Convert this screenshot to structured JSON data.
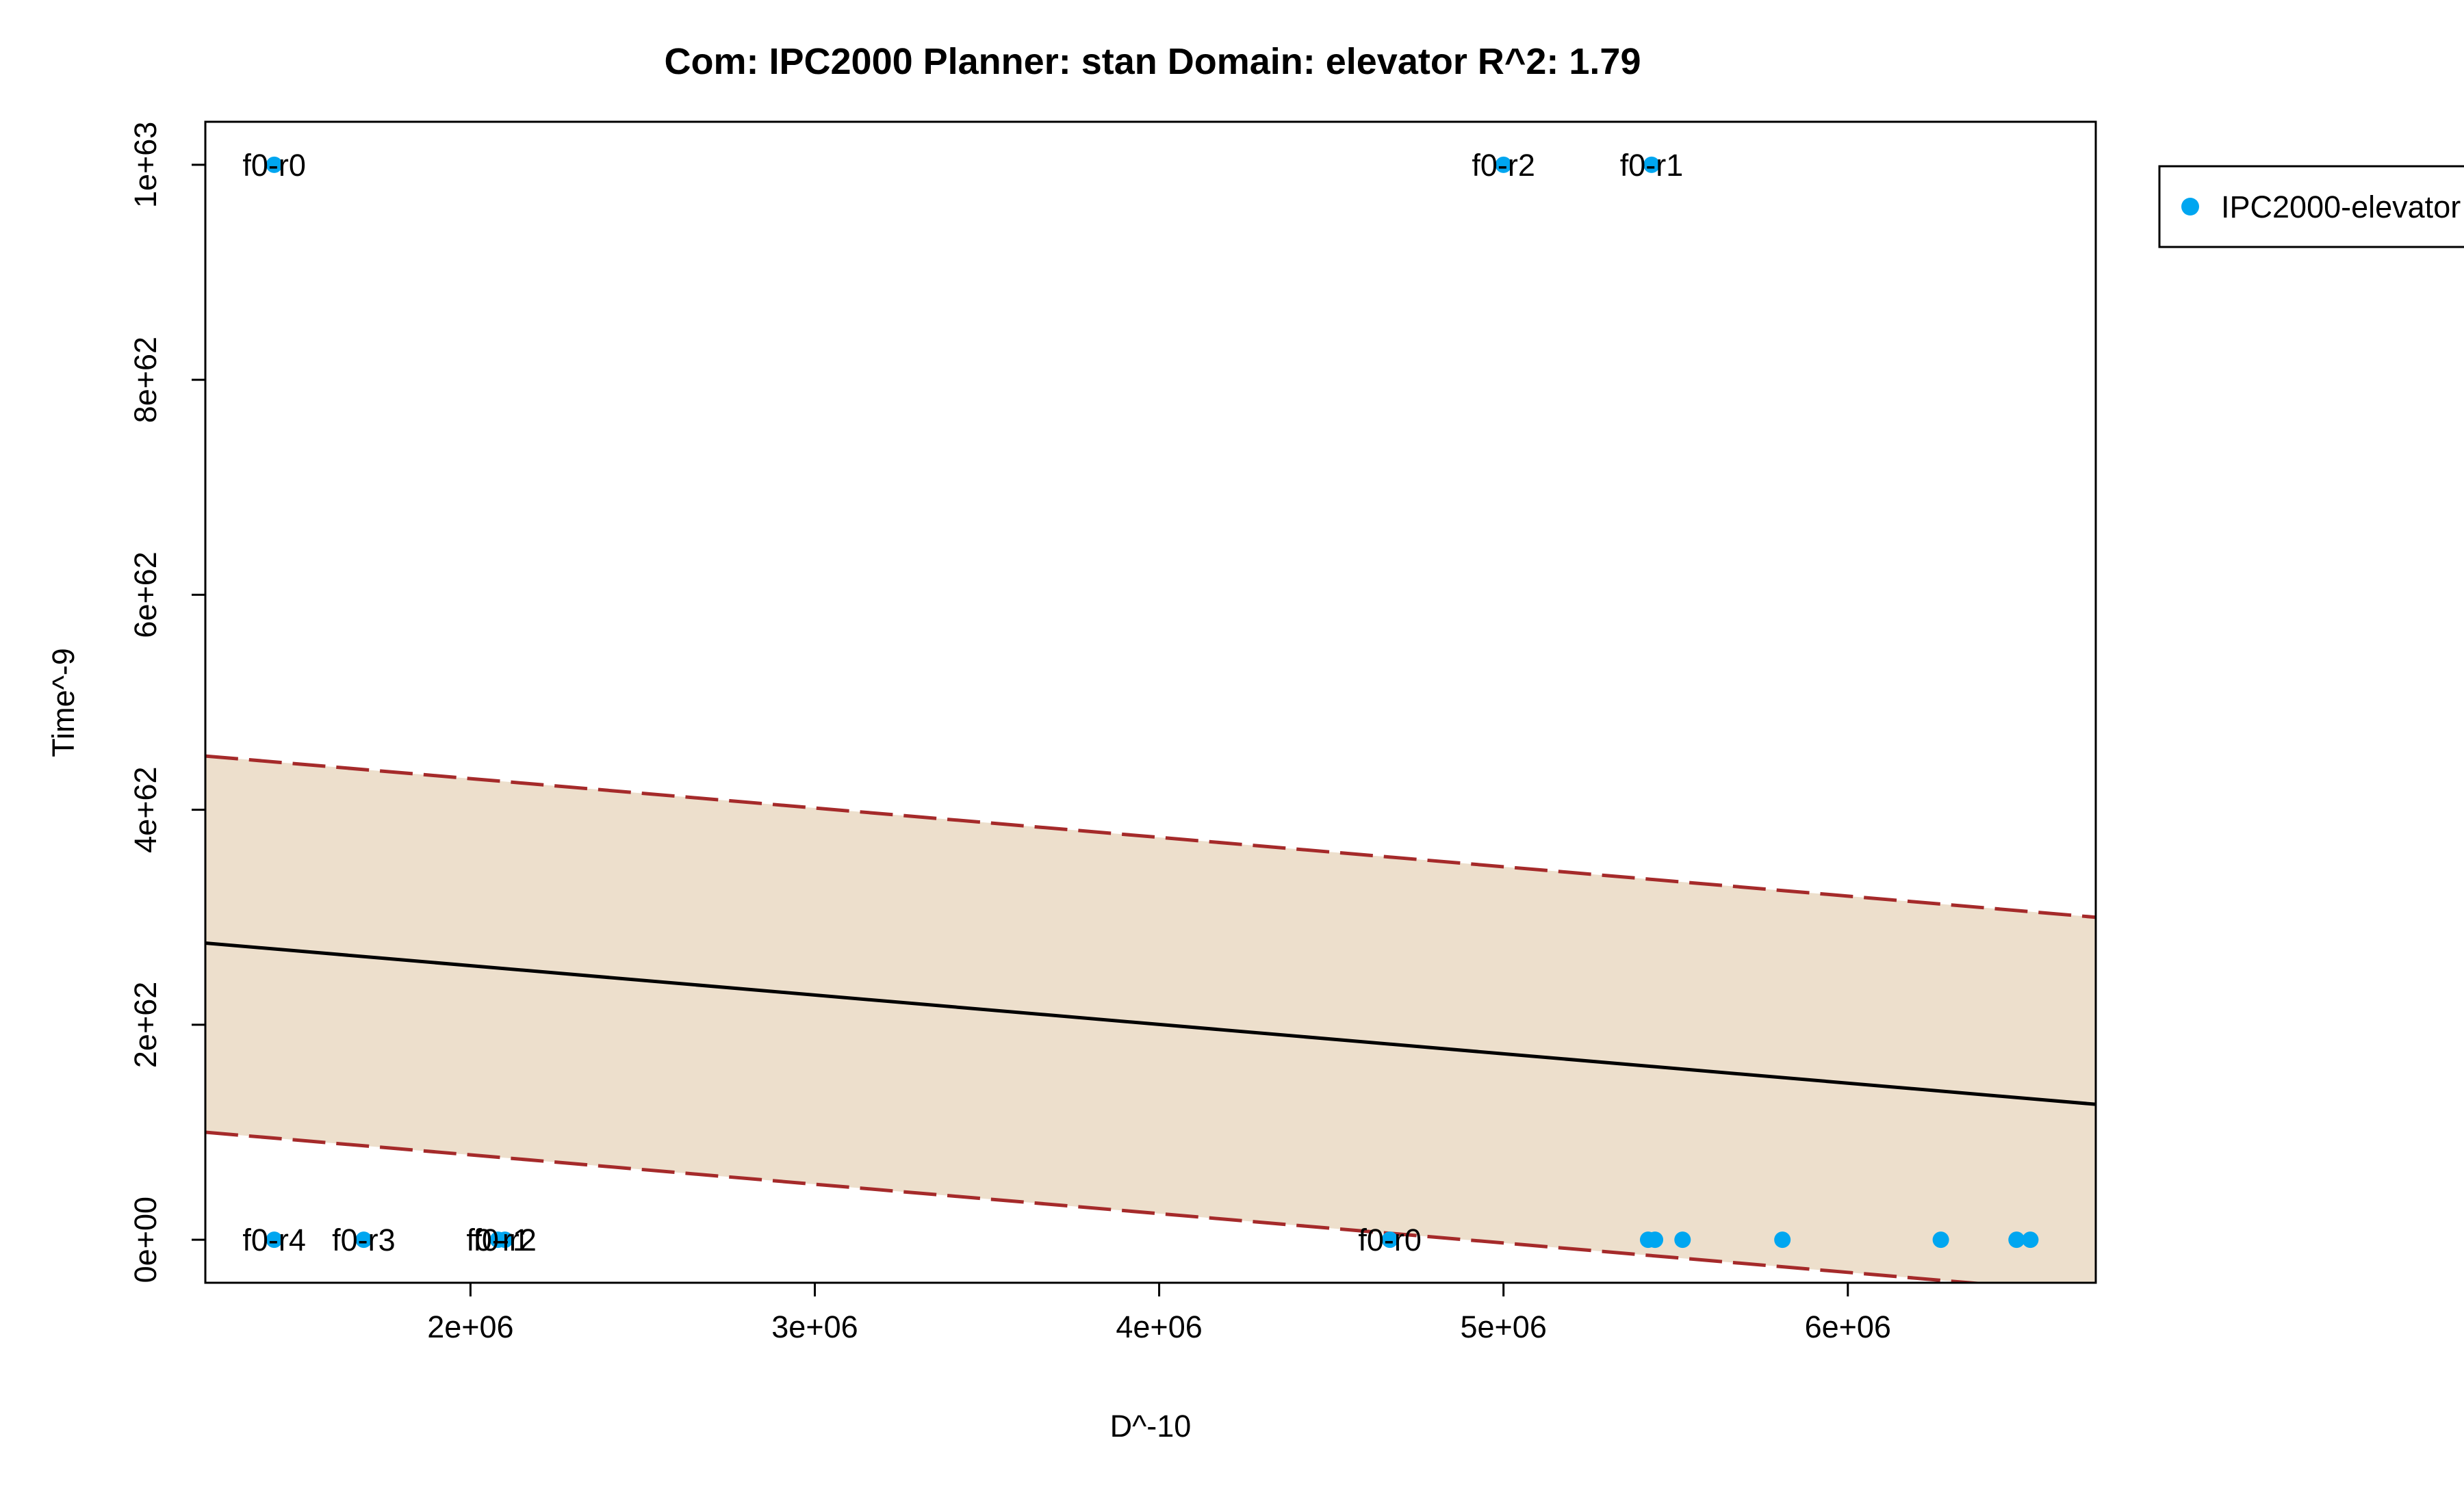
{
  "chart_data": {
    "type": "scatter",
    "title": "Com: IPC2000 Planner: stan Domain: elevator R^2: 1.79",
    "xlabel": "D^-10",
    "ylabel": "Time^-9",
    "xlim": [
      1230000,
      6720000
    ],
    "ylim": [
      -4e+61,
      1.04e+63
    ],
    "x_ticks": [
      2000000,
      3000000,
      4000000,
      5000000,
      6000000
    ],
    "x_tick_labels": [
      "2e+06",
      "3e+06",
      "4e+06",
      "5e+06",
      "6e+06"
    ],
    "y_ticks": [
      0,
      2e+62,
      4e+62,
      6e+62,
      8e+62,
      1e+63
    ],
    "y_tick_labels": [
      "0e+00",
      "2e+62",
      "4e+62",
      "6e+62",
      "8e+62",
      "1e+63"
    ],
    "grid": false,
    "legend_position": "top-right",
    "legend": [
      "IPC2000-elevator"
    ],
    "colors": {
      "points": "#00a6f0",
      "fit_line": "#000000",
      "bounds": "#a52a2a",
      "band": "#eddfcc"
    },
    "series": [
      {
        "name": "IPC2000-elevator",
        "points": [
          {
            "x": 1430000,
            "y": 1e+63,
            "label": "f0-r0"
          },
          {
            "x": 5000000,
            "y": 1e+63,
            "label": "f0-r2"
          },
          {
            "x": 5430000,
            "y": 1e+63,
            "label": "f0-r1"
          },
          {
            "x": 1430000,
            "y": 0,
            "label": "f0-r4"
          },
          {
            "x": 1690000,
            "y": 0,
            "label": "f0-r3"
          },
          {
            "x": 2080000,
            "y": 0,
            "label": "f0-r1"
          },
          {
            "x": 2100000,
            "y": 0,
            "label": "f0-r2"
          },
          {
            "x": 4670000,
            "y": 0,
            "label": "f0-r0"
          },
          {
            "x": 5420000,
            "y": 0,
            "label": ""
          },
          {
            "x": 5440000,
            "y": 0,
            "label": ""
          },
          {
            "x": 5520000,
            "y": 0,
            "label": ""
          },
          {
            "x": 5810000,
            "y": 0,
            "label": ""
          },
          {
            "x": 6270000,
            "y": 0,
            "label": ""
          },
          {
            "x": 6490000,
            "y": 0,
            "label": ""
          },
          {
            "x": 6530000,
            "y": 0,
            "label": ""
          }
        ]
      }
    ],
    "fit": {
      "x": [
        1230000,
        6720000
      ],
      "y": [
        2.76e+62,
        1.26e+62
      ],
      "upper": [
        4.5e+62,
        3e+62
      ],
      "lower": [
        1e+62,
        -5e+61
      ]
    }
  }
}
